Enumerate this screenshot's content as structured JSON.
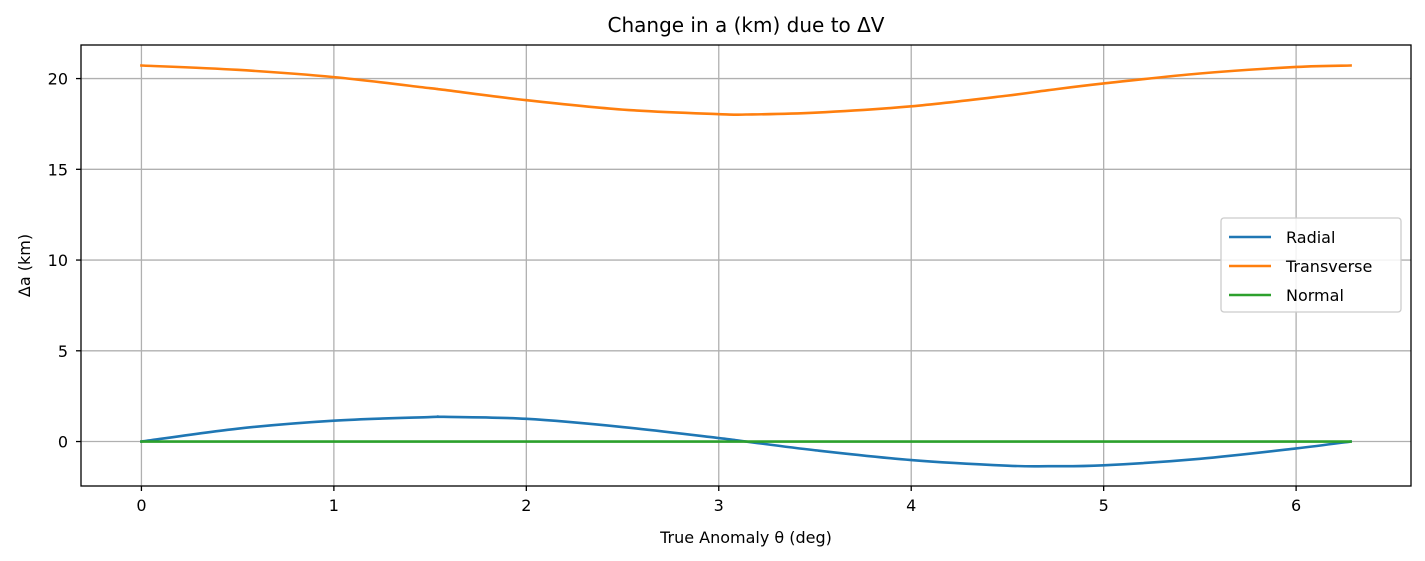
{
  "chart_data": {
    "type": "line",
    "title": "Change in a (km) due to ΔV",
    "xlabel": "True Anomaly θ (deg)",
    "ylabel": "Δa (km)",
    "xlim": [
      -0.314,
      6.597
    ],
    "ylim": [
      -2.45,
      21.85
    ],
    "xticks": [
      0,
      1,
      2,
      3,
      4,
      5,
      6
    ],
    "yticks": [
      0,
      5,
      10,
      15,
      20
    ],
    "grid": true,
    "legend_position": "center-right",
    "x": [
      0,
      0.5,
      1,
      1.5,
      1.571,
      2,
      2.5,
      3,
      3.142,
      3.5,
      4,
      4.5,
      4.712,
      5,
      5.5,
      6,
      6.283
    ],
    "series": [
      {
        "name": "Radial",
        "color": "#1f77b4",
        "values": [
          0,
          0.71,
          1.15,
          1.35,
          1.36,
          1.25,
          0.8,
          0.19,
          0,
          -0.48,
          -1.02,
          -1.33,
          -1.36,
          -1.31,
          -0.95,
          -0.38,
          0
        ]
      },
      {
        "name": "Transverse",
        "color": "#ff7f0e",
        "values": [
          20.72,
          20.48,
          20.08,
          19.47,
          19.38,
          18.81,
          18.29,
          18.04,
          18.02,
          18.12,
          18.47,
          19.06,
          19.36,
          19.73,
          20.28,
          20.64,
          20.72
        ]
      },
      {
        "name": "Normal",
        "color": "#2ca02c",
        "values": [
          0,
          0,
          0,
          0,
          0,
          0,
          0,
          0,
          0,
          0,
          0,
          0,
          0,
          0,
          0,
          0,
          0
        ]
      }
    ]
  }
}
